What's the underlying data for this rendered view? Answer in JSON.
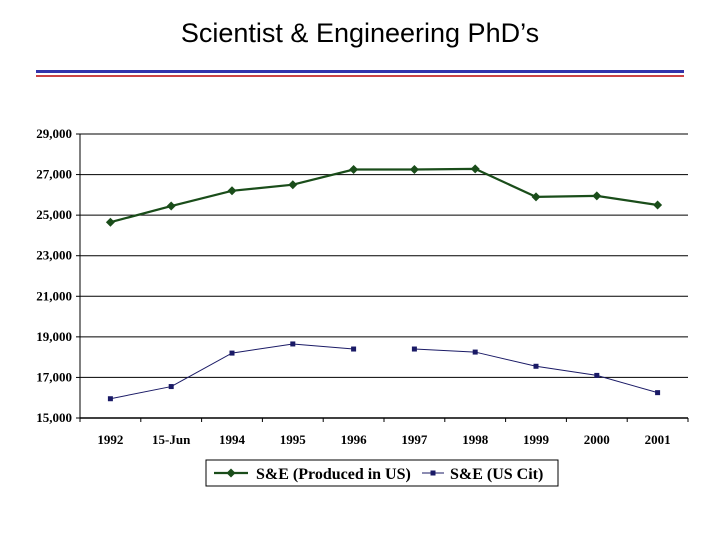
{
  "slide": {
    "title": "Scientist & Engineering PhD’s",
    "rule_color_blue": "#3333aa",
    "rule_color_red": "#cc4444"
  },
  "chart_data": {
    "type": "line",
    "categories": [
      "1992",
      "15-Jun",
      "1994",
      "1995",
      "1996",
      "1997",
      "1998",
      "1999",
      "2000",
      "2001"
    ],
    "ylim": [
      15000,
      29000
    ],
    "yticks": [
      15000,
      17000,
      19000,
      21000,
      23000,
      25000,
      27000,
      29000
    ],
    "ytick_labels": [
      "15,000",
      "17,000",
      "19,000",
      "21,000",
      "23,000",
      "25,000",
      "27,000",
      "29,000"
    ],
    "grid": true,
    "legend_position": "bottom",
    "series": [
      {
        "name": "S&E (Produced in US)",
        "values": [
          24650,
          25450,
          26200,
          26500,
          27250,
          27250,
          27280,
          25900,
          25950,
          25500
        ],
        "color": "#1a4d1a",
        "marker": "diamond"
      },
      {
        "name": "S&E (US Cit)",
        "values": [
          15950,
          16550,
          18200,
          18650,
          18400,
          18400,
          18250,
          17550,
          17100,
          16250
        ],
        "color": "#1a1a66",
        "marker": "square",
        "gap_after_index": 4
      }
    ]
  }
}
